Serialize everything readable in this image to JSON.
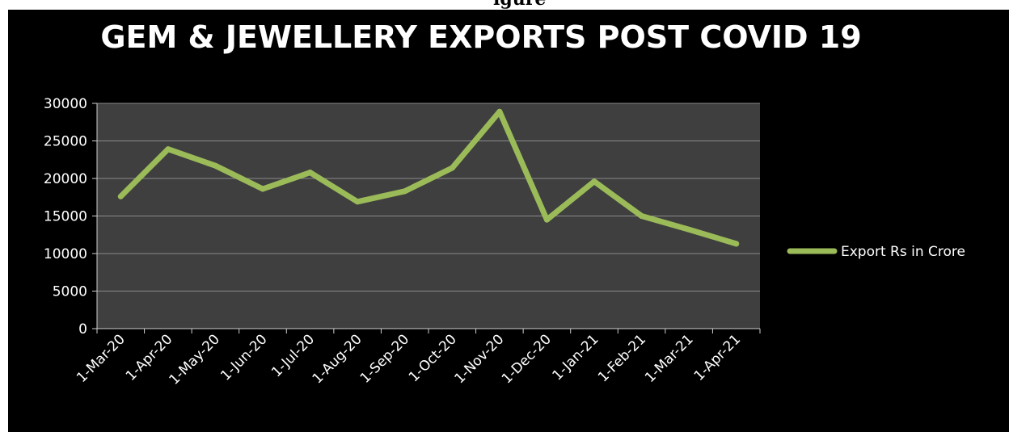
{
  "header_fragment": "igure",
  "chart_data": {
    "type": "line",
    "title": "GEM & JEWELLERY EXPORTS POST COVID 19",
    "xlabel": "",
    "ylabel": "",
    "ylim": [
      0,
      30000
    ],
    "y_ticks": [
      "0",
      "5000",
      "10000",
      "15000",
      "20000",
      "25000",
      "30000"
    ],
    "grid": true,
    "legend_position": "right",
    "categories": [
      "1-Mar-20",
      "1-Apr-20",
      "1-May-20",
      "1-Jun-20",
      "1-Jul-20",
      "1-Aug-20",
      "1-Sep-20",
      "1-Oct-20",
      "1-Nov-20",
      "1-Dec-20",
      "1-Jan-21",
      "1-Feb-21",
      "1-Mar-21",
      "1-Apr-21"
    ],
    "series": [
      {
        "name": "Export Rs in Crore",
        "color": "#9bbb59",
        "values": [
          17600,
          23900,
          21700,
          18600,
          20800,
          16900,
          18300,
          21400,
          28900,
          14500,
          19600,
          15000,
          13200,
          11300
        ]
      }
    ]
  }
}
